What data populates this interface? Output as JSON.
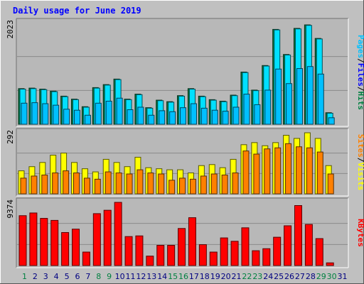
{
  "chart_data": {
    "type": "bar",
    "title": "Daily usage for June 2019",
    "categories": [
      "1",
      "2",
      "3",
      "4",
      "5",
      "6",
      "7",
      "8",
      "9",
      "10",
      "11",
      "12",
      "13",
      "14",
      "15",
      "16",
      "17",
      "18",
      "19",
      "20",
      "21",
      "22",
      "23",
      "24",
      "25",
      "26",
      "27",
      "28",
      "29",
      "30",
      "31"
    ],
    "weekend_days": [
      1,
      8,
      9,
      15,
      16,
      22,
      23,
      29,
      30
    ],
    "colors": {
      "background": "#C0C0C0",
      "panel": "#B8B8B8",
      "hits": "#008040",
      "files": "#00E0FF",
      "pages": "#00C0FF",
      "visits": "#FFFF00",
      "sites": "#FF8000",
      "kbytes": "#FF0000",
      "title_color": "#0000FF",
      "weekend_label_color": "#008040",
      "weekday_label_color": "#000080"
    },
    "panels": [
      {
        "id": "hits",
        "max_label": "2023",
        "ylim": [
          0,
          2023
        ],
        "right_labels": [
          "Pages",
          "/",
          "Files",
          "/",
          "Hits"
        ],
        "right_label_colors": [
          "#00C0FF",
          "#000000",
          "#0000FF",
          "#000000",
          "#008040"
        ],
        "series": [
          {
            "name": "Hits",
            "color": "#008040",
            "values": [
              710,
              720,
              700,
              660,
              560,
              500,
              350,
              730,
              790,
              900,
              500,
              600,
              330,
              480,
              450,
              570,
              710,
              560,
              490,
              460,
              580,
              1040,
              680,
              1170,
              1890,
              1390,
              1910,
              1980,
              1710,
              230,
              0
            ]
          },
          {
            "name": "Files",
            "color": "#00E0FF",
            "values": [
              700,
              710,
              690,
              650,
              550,
              490,
              340,
              720,
              780,
              890,
              490,
              590,
              320,
              470,
              440,
              560,
              700,
              550,
              480,
              450,
              570,
              1030,
              670,
              1160,
              1880,
              1380,
              1900,
              1970,
              1700,
              220,
              0
            ]
          },
          {
            "name": "Pages",
            "color": "#00C0FF",
            "values": [
              420,
              430,
              410,
              380,
              300,
              280,
              180,
              420,
              460,
              520,
              290,
              340,
              180,
              270,
              250,
              330,
              410,
              320,
              280,
              260,
              340,
              600,
              390,
              680,
              1100,
              810,
              1110,
              1150,
              1000,
              130,
              0
            ]
          }
        ]
      },
      {
        "id": "visits",
        "max_label": "292",
        "ylim": [
          0,
          292
        ],
        "right_labels": [
          "Sites",
          "/",
          "Visits"
        ],
        "right_label_colors": [
          "#FF8000",
          "#000000",
          "#FFFF00"
        ],
        "series": [
          {
            "name": "Visits",
            "color": "#FFFF00",
            "values": [
              110,
              130,
              150,
              185,
              195,
              150,
              120,
              105,
              165,
              150,
              130,
              175,
              125,
              120,
              115,
              115,
              100,
              135,
              140,
              125,
              165,
              235,
              245,
              230,
              245,
              280,
              265,
              292,
              265,
              135,
              0
            ]
          },
          {
            "name": "Sites",
            "color": "#FF8000",
            "values": [
              75,
              85,
              90,
              100,
              110,
              100,
              75,
              70,
              105,
              100,
              95,
              115,
              100,
              95,
              65,
              75,
              70,
              85,
              95,
              90,
              100,
              205,
              190,
              215,
              220,
              240,
              225,
              220,
              200,
              95,
              0
            ]
          }
        ]
      },
      {
        "id": "kbytes",
        "max_label": "9374",
        "ylim": [
          0,
          9374
        ],
        "right_labels": [
          "KBytes"
        ],
        "right_label_colors": [
          "#FF0000"
        ],
        "series": [
          {
            "name": "KBytes",
            "color": "#FF0000",
            "values": [
              7400,
              7800,
              7000,
              6700,
              4900,
              5400,
              2000,
              7700,
              8200,
              9374,
              4300,
              4400,
              1400,
              3000,
              3000,
              5500,
              7100,
              3100,
              2000,
              4100,
              3600,
              5600,
              2200,
              2500,
              4200,
              5900,
              8900,
              6100,
              4000,
              400,
              0
            ]
          }
        ]
      }
    ]
  }
}
